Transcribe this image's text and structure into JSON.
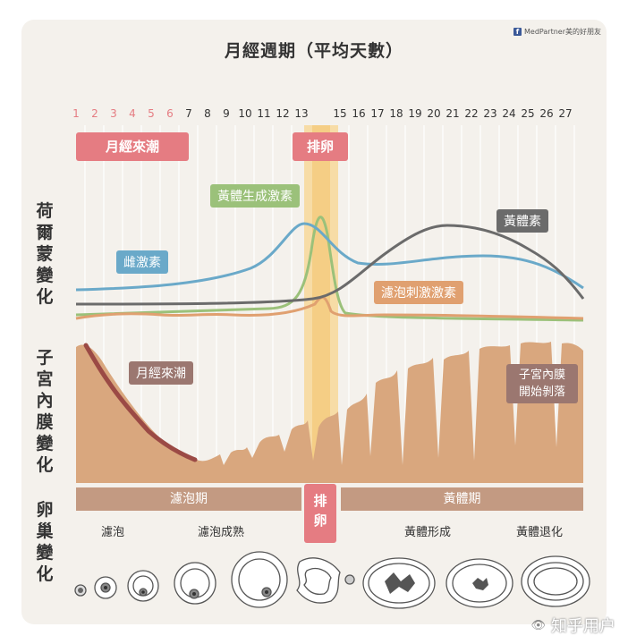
{
  "title": "月經週期（平均天數）",
  "brand": {
    "icon": "f",
    "text": "MedPartner美的好朋友"
  },
  "days": [
    "1",
    "2",
    "3",
    "4",
    "5",
    "6",
    "7",
    "8",
    "9",
    "10",
    "11",
    "12",
    "13",
    "15",
    "16",
    "17",
    "18",
    "19",
    "20",
    "21",
    "22",
    "23",
    "24",
    "25",
    "26",
    "27"
  ],
  "colors": {
    "menstrual_day": "#e57c82",
    "day": "#333333",
    "tissue": "#d9a77e",
    "blood": "#9b4a45",
    "stage_bar": "#c39a82",
    "ovulation": "#e57c82"
  },
  "sections": {
    "hormone": "荷爾蒙變化",
    "endometrium": "子宮內膜變化",
    "ovary": "卵巢變化"
  },
  "tags": {
    "menstruation": "月經來潮",
    "ovulation": "排卵"
  },
  "hormones": {
    "lh": {
      "label": "黃體生成激素",
      "color": "#9bc17a"
    },
    "progesterone": {
      "label": "黃體素",
      "color": "#6b6b6b"
    },
    "estrogen": {
      "label": "雌激素",
      "color": "#6aa9c9"
    },
    "fsh": {
      "label": "濾泡刺激激素",
      "color": "#e0a070"
    }
  },
  "endometrium_labels": {
    "menstruation": "月經來潮",
    "shedding_line1": "子宮內膜",
    "shedding_line2": "開始剝落"
  },
  "stages": {
    "follicular": "濾泡期",
    "ovulation_line1": "排",
    "ovulation_line2": "卵",
    "luteal": "黃體期"
  },
  "phases": {
    "follicle": "濾泡",
    "maturing": "濾泡成熟",
    "forming": "黃體形成",
    "regressing": "黃體退化"
  },
  "watermark": {
    "text": "知乎用户",
    "eye": "👁"
  }
}
